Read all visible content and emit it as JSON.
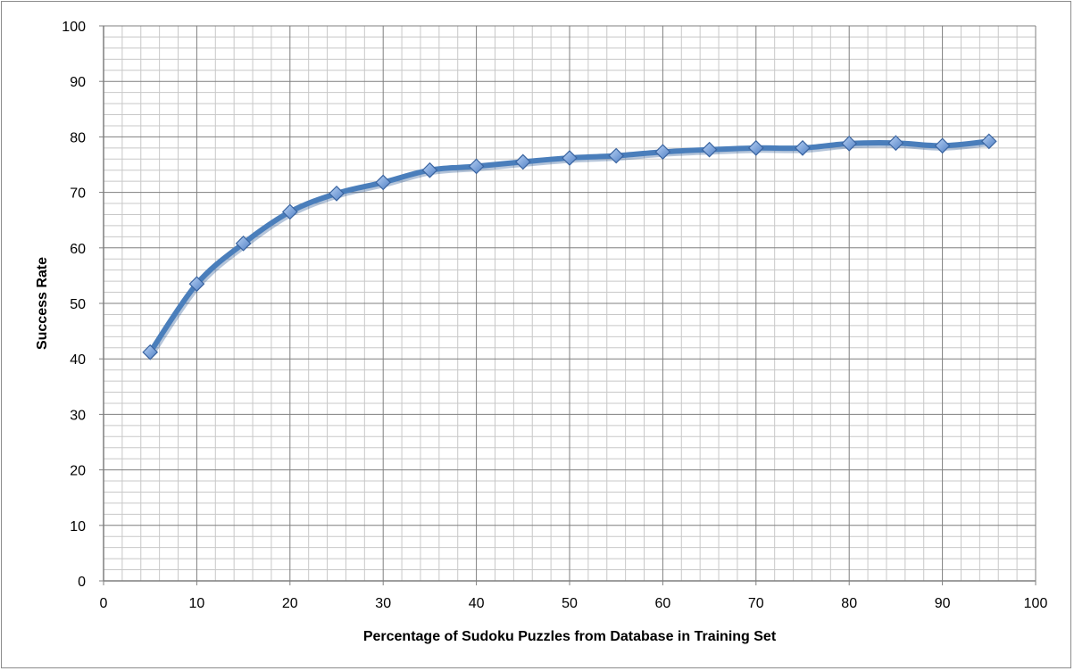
{
  "chart_data": {
    "type": "line",
    "title": "",
    "xlabel": "Percentage of Sudoku Puzzles from Database in Training Set",
    "ylabel": "Success Rate",
    "xlim": [
      0,
      100
    ],
    "ylim": [
      0,
      100
    ],
    "x_ticks": [
      "0",
      "10",
      "20",
      "30",
      "40",
      "50",
      "60",
      "70",
      "80",
      "90",
      "100"
    ],
    "y_ticks": [
      "0",
      "10",
      "20",
      "30",
      "40",
      "50",
      "60",
      "70",
      "80",
      "90",
      "100"
    ],
    "grid": true,
    "legend": "none",
    "series": [
      {
        "x": [
          5,
          10,
          15,
          20,
          25,
          30,
          35,
          40,
          45,
          50,
          55,
          60,
          65,
          70,
          75,
          80,
          85,
          90,
          95
        ],
        "y": [
          41.2,
          53.5,
          60.8,
          66.5,
          69.8,
          71.8,
          74.0,
          74.7,
          75.5,
          76.2,
          76.6,
          77.3,
          77.7,
          78.0,
          78.0,
          78.8,
          78.9,
          78.4,
          79.2
        ],
        "color": "#4a7ebb",
        "marker": "diamond",
        "marker_color": "#6a9ae0"
      }
    ]
  }
}
